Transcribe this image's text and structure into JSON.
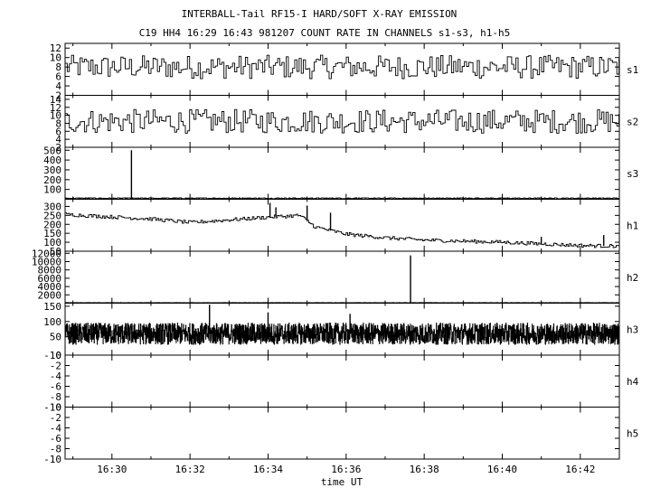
{
  "chart_data": {
    "type": "line",
    "title": "INTERBALL-Tail RF15-I HARD/SOFT X-RAY EMISSION",
    "subtitle": "C19 HH4 16:29 16:43 981207  COUNT RATE IN CHANNELS s1-s3, h1-h5",
    "xlabel": "time UT",
    "x_ticks": [
      "16:30",
      "16:32",
      "16:34",
      "16:36",
      "16:38",
      "16:40",
      "16:42"
    ],
    "x_range_min": [
      28.8,
      43.0
    ],
    "panels": [
      {
        "name": "s1",
        "ylim": [
          2,
          13
        ],
        "y_ticks": [
          2,
          4,
          6,
          8,
          10,
          12
        ],
        "series": {
          "base": 8,
          "noise": 2.5,
          "step_min": 0.055,
          "spikes": []
        }
      },
      {
        "name": "s2",
        "ylim": [
          2,
          15
        ],
        "y_ticks": [
          2,
          4,
          6,
          8,
          10,
          12,
          14
        ],
        "series": {
          "base": 8.5,
          "noise": 3,
          "step_min": 0.055,
          "spikes": []
        }
      },
      {
        "name": "s3",
        "ylim": [
          0,
          530
        ],
        "y_ticks": [
          100,
          200,
          300,
          400,
          500
        ],
        "series": {
          "base": 10,
          "noise": 5,
          "step_min": 0.02,
          "spikes": [
            {
              "t": 30.5,
              "v": 500
            }
          ]
        }
      },
      {
        "name": "h1",
        "ylim": [
          50,
          340
        ],
        "y_ticks": [
          50,
          100,
          150,
          200,
          250,
          300
        ],
        "series": {
          "profile": [
            [
              28.8,
              255
            ],
            [
              31,
              230
            ],
            [
              32,
              210
            ],
            [
              34,
              240
            ],
            [
              34.8,
              250
            ],
            [
              35.2,
              185
            ],
            [
              36,
              145
            ],
            [
              37,
              125
            ],
            [
              38,
              112
            ],
            [
              40,
              100
            ],
            [
              42,
              82
            ],
            [
              43,
              78
            ]
          ],
          "noise": 10,
          "step_min": 0.04,
          "spikes": [
            {
              "t": 34.05,
              "v": 320
            },
            {
              "t": 34.2,
              "v": 295
            },
            {
              "t": 35.0,
              "v": 305
            },
            {
              "t": 35.6,
              "v": 265
            },
            {
              "t": 41.0,
              "v": 130
            },
            {
              "t": 42.6,
              "v": 140
            }
          ]
        }
      },
      {
        "name": "h2",
        "ylim": [
          0,
          12500
        ],
        "y_ticks": [
          2000,
          4000,
          6000,
          8000,
          10000,
          12000
        ],
        "series": {
          "base": 120,
          "noise": 40,
          "step_min": 0.02,
          "spikes": [
            {
              "t": 37.65,
              "v": 11500
            }
          ]
        }
      },
      {
        "name": "h3",
        "ylim": [
          -10,
          160
        ],
        "y_ticks": [
          -10,
          50,
          100,
          150
        ],
        "series": {
          "base": 60,
          "noise": 35,
          "step_min": 0.006,
          "spikes": [
            {
              "t": 32.5,
              "v": 155
            },
            {
              "t": 34.0,
              "v": 130
            },
            {
              "t": 36.1,
              "v": 125
            }
          ]
        }
      },
      {
        "name": "h4",
        "ylim": [
          -10,
          0
        ],
        "y_ticks": [
          -10,
          -8,
          -6,
          -4,
          -2,
          0
        ],
        "series": null
      },
      {
        "name": "h5",
        "ylim": [
          -10,
          0
        ],
        "y_ticks": [
          -10,
          -8,
          -6,
          -4,
          -2,
          0
        ],
        "series": null
      }
    ]
  }
}
